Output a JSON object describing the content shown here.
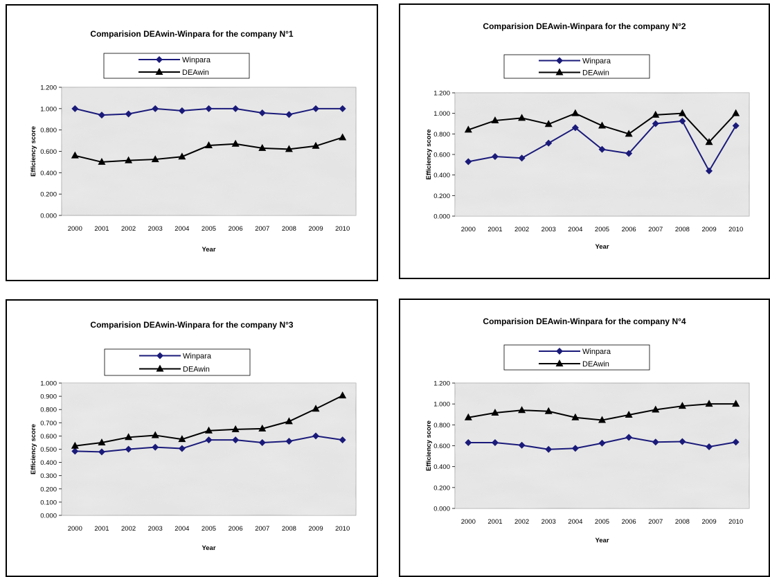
{
  "chart_data": [
    {
      "type": "line",
      "title": "Comparision DEAwin-Winpara for the company N°1",
      "xlabel": "Year",
      "ylabel": "Efficiency score",
      "categories": [
        "2000",
        "2001",
        "2002",
        "2003",
        "2004",
        "2005",
        "2006",
        "2007",
        "2008",
        "2009",
        "2010"
      ],
      "yticks": [
        "0.000",
        "0.200",
        "0.400",
        "0.600",
        "0.800",
        "1.000",
        "1.200"
      ],
      "ylim": [
        0,
        1.2
      ],
      "legend": "top-center",
      "grid": false,
      "series": [
        {
          "name": "Winpara",
          "color": "#1a1a7a",
          "marker": "diamond",
          "values": [
            1.0,
            0.94,
            0.95,
            1.0,
            0.98,
            1.0,
            1.0,
            0.96,
            0.945,
            1.0,
            1.0
          ]
        },
        {
          "name": "DEAwin",
          "color": "#000000",
          "marker": "triangle",
          "values": [
            0.56,
            0.5,
            0.515,
            0.525,
            0.55,
            0.655,
            0.67,
            0.63,
            0.62,
            0.65,
            0.73
          ]
        }
      ]
    },
    {
      "type": "line",
      "title": "Comparision DEAwin-Winpara for the company N°2",
      "xlabel": "Year",
      "ylabel": "Efficiency score",
      "categories": [
        "2000",
        "2001",
        "2002",
        "2003",
        "2004",
        "2005",
        "2006",
        "2007",
        "2008",
        "2009",
        "2010"
      ],
      "yticks": [
        "0.000",
        "0.200",
        "0.400",
        "0.600",
        "0.800",
        "1.000",
        "1.200"
      ],
      "ylim": [
        0,
        1.2
      ],
      "legend": "top-center",
      "grid": false,
      "series": [
        {
          "name": "Winpara",
          "color": "#1a1a7a",
          "marker": "diamond",
          "values": [
            0.53,
            0.58,
            0.565,
            0.71,
            0.86,
            0.65,
            0.61,
            0.9,
            0.925,
            0.44,
            0.88
          ]
        },
        {
          "name": "DEAwin",
          "color": "#000000",
          "marker": "triangle",
          "values": [
            0.84,
            0.93,
            0.955,
            0.895,
            1.0,
            0.88,
            0.8,
            0.985,
            1.0,
            0.72,
            1.0
          ]
        }
      ]
    },
    {
      "type": "line",
      "title": "Comparision DEAwin-Winpara for the company N°3",
      "xlabel": "Year",
      "ylabel": "Efficiency score",
      "categories": [
        "2000",
        "2001",
        "2002",
        "2003",
        "2004",
        "2005",
        "2006",
        "2007",
        "2008",
        "2009",
        "2010"
      ],
      "yticks": [
        "0.000",
        "0.100",
        "0.200",
        "0.300",
        "0.400",
        "0.500",
        "0.600",
        "0.700",
        "0.800",
        "0.900",
        "1.000"
      ],
      "ylim": [
        0,
        1.0
      ],
      "legend": "top-center",
      "grid": false,
      "series": [
        {
          "name": "Winpara",
          "color": "#1a1a7a",
          "marker": "diamond",
          "values": [
            0.485,
            0.48,
            0.5,
            0.515,
            0.505,
            0.57,
            0.57,
            0.55,
            0.56,
            0.6,
            0.57
          ]
        },
        {
          "name": "DEAwin",
          "color": "#000000",
          "marker": "triangle",
          "values": [
            0.525,
            0.55,
            0.59,
            0.605,
            0.575,
            0.64,
            0.65,
            0.655,
            0.71,
            0.805,
            0.905
          ]
        }
      ]
    },
    {
      "type": "line",
      "title": "Comparision DEAwin-Winpara for the company N°4",
      "xlabel": "Year",
      "ylabel": "Efficiency score",
      "categories": [
        "2000",
        "2001",
        "2002",
        "2003",
        "2004",
        "2005",
        "2006",
        "2007",
        "2008",
        "2009",
        "2010"
      ],
      "yticks": [
        "0.000",
        "0.200",
        "0.400",
        "0.600",
        "0.800",
        "1.000",
        "1.200"
      ],
      "ylim": [
        0,
        1.2
      ],
      "legend": "top-center",
      "grid": false,
      "series": [
        {
          "name": "Winpara",
          "color": "#1a1a7a",
          "marker": "diamond",
          "values": [
            0.63,
            0.63,
            0.605,
            0.565,
            0.575,
            0.625,
            0.68,
            0.635,
            0.64,
            0.59,
            0.635
          ]
        },
        {
          "name": "DEAwin",
          "color": "#000000",
          "marker": "triangle",
          "values": [
            0.87,
            0.915,
            0.94,
            0.93,
            0.87,
            0.845,
            0.895,
            0.945,
            0.98,
            1.0,
            1.0
          ]
        }
      ]
    }
  ]
}
